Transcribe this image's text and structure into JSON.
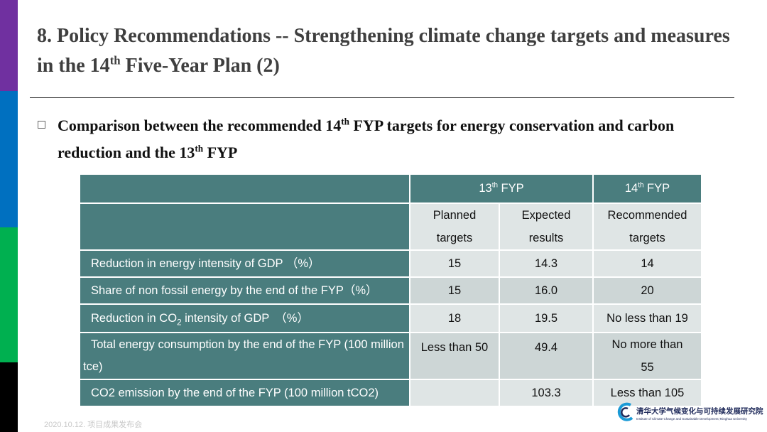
{
  "header": {
    "title": [
      "8. Policy Recommendations -- Strengthening climate change targets and measures in the 14",
      "th",
      " Five-Year Plan (2)"
    ]
  },
  "bullet": [
    "Comparison between the recommended 14",
    "th",
    " FYP targets for energy conservation and carbon reduction and the 13",
    "th",
    " FYP"
  ],
  "table": {
    "group_headers": [
      [
        "13",
        "th",
        " FYP"
      ],
      [
        "14",
        "th",
        " FYP"
      ]
    ],
    "column_headers": [
      "Planned targets",
      "Expected results",
      "Recommended targets"
    ],
    "rows": [
      {
        "label": "Reduction in energy intensity of GDP （%）",
        "planned": "15",
        "expected": "14.3",
        "recommended": "14"
      },
      {
        "label": "Share of non fossil energy by the end of the FYP（%）",
        "planned": "15",
        "expected": "16.0",
        "recommended": "20"
      },
      {
        "label": [
          "Reduction in CO",
          "2",
          " intensity of GDP　（%）"
        ],
        "planned": "18",
        "expected": "19.5",
        "recommended": "No less than 19"
      },
      {
        "label": "Total energy consumption by the end of the FYP (100 million tce)",
        "planned": "Less than 50",
        "expected": "49.4",
        "recommended": "No more than 55"
      },
      {
        "label": "CO2 emission by the end of the FYP (100 million tCO2)",
        "expected": "103.3",
        "recommended": "Less than 105"
      }
    ]
  },
  "footer": {
    "date": "2020.10.12. 项目成果发布会",
    "logo_cn": "清华大学气候变化与可持续发展研究院",
    "logo_en": "Institute of Climate Change and Sustainable Development,Tsinghua University"
  }
}
